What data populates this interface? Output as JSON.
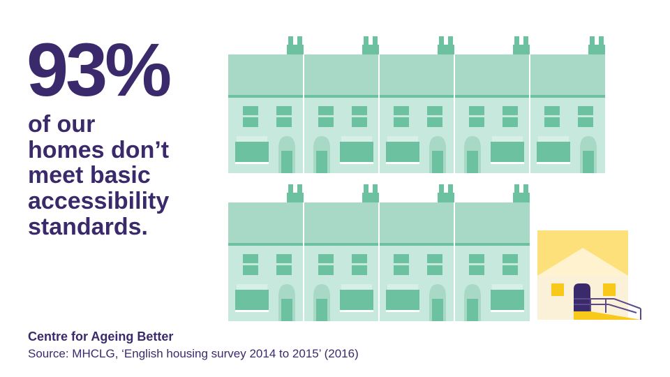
{
  "stat": {
    "value": "93%"
  },
  "headline": {
    "lines": [
      "of our",
      "homes don’t",
      "meet basic",
      "accessibility",
      "standards."
    ]
  },
  "footer": {
    "organisation": "Centre for Ageing Better",
    "source": "Source: MHCLG, ‘English housing survey 2014 to 2015’ (2016)"
  },
  "illustration": {
    "row1_houses": 5,
    "row2_houses": 4,
    "accessible_house": "accessible-house-with-ramp-icon",
    "colors": {
      "roof": "#a8d8c6",
      "facade": "#c7e8dc",
      "roof_band": "#6cc1a0",
      "chimney": "#6cc1a0",
      "window": "#6cc1a0",
      "door": "#6cc1a0",
      "divider": "#ffffff",
      "accessible_sky": "#fde07a",
      "accessible_roof": "#fef2cf",
      "accessible_wall": "#fbf1d9",
      "accessible_window": "#f8c81a",
      "accessible_door": "#3b2a6b",
      "ramp": "#f8c81a",
      "rail": "#5b4a8b",
      "text": "#3b2a6b"
    }
  }
}
